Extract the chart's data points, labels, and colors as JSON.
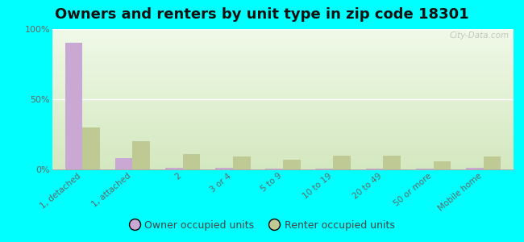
{
  "title": "Owners and renters by unit type in zip code 18301",
  "categories": [
    "1, detached",
    "1, attached",
    "2",
    "3 or 4",
    "5 to 9",
    "10 to 19",
    "20 to 49",
    "50 or more",
    "Mobile home"
  ],
  "owner_values": [
    90,
    8,
    1,
    1,
    0.5,
    0.5,
    0.5,
    0.5,
    1
  ],
  "renter_values": [
    30,
    20,
    11,
    9,
    7,
    10,
    10,
    6,
    9
  ],
  "owner_color": "#c9a8d4",
  "renter_color": "#bec994",
  "background_color": "#00ffff",
  "title_fontsize": 13,
  "ylim": [
    0,
    100
  ],
  "yticks": [
    0,
    50,
    100
  ],
  "ytick_labels": [
    "0%",
    "50%",
    "100%"
  ],
  "legend_labels": [
    "Owner occupied units",
    "Renter occupied units"
  ],
  "watermark": "City-Data.com",
  "bar_width": 0.35
}
